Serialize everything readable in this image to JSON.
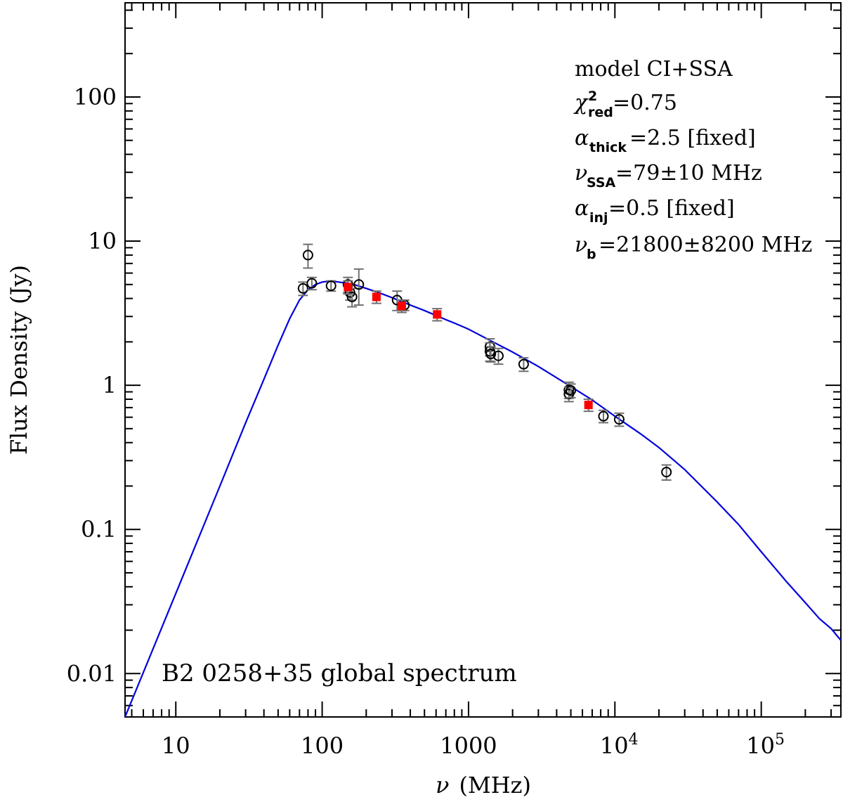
{
  "chart_data": {
    "type": "scatter",
    "title": "",
    "xlabel": "(MHz)",
    "xlabel_symbol": "ν",
    "ylabel": "Flux Density (Jy)",
    "x_scale": "log",
    "y_scale": "log",
    "xlim": [
      4.5,
      350000
    ],
    "ylim": [
      0.005,
      450
    ],
    "grid": false,
    "x_ticks": [
      {
        "value": 10,
        "label": "10"
      },
      {
        "value": 100,
        "label": "100"
      },
      {
        "value": 1000,
        "label": "1000"
      },
      {
        "value": 10000,
        "label": "10",
        "exp": "4"
      },
      {
        "value": 100000,
        "label": "10",
        "exp": "5"
      }
    ],
    "y_ticks": [
      {
        "value": 0.01,
        "label": "0.01"
      },
      {
        "value": 0.1,
        "label": "0.1"
      },
      {
        "value": 1,
        "label": "1"
      },
      {
        "value": 10,
        "label": "10"
      },
      {
        "value": 100,
        "label": "100"
      }
    ],
    "annotations": {
      "model": "model CI+SSA",
      "chi2_sym": "χ",
      "chi2_sup": "2",
      "chi2_sub": "red",
      "chi2_value": "=0.75",
      "alpha_sym": "α",
      "alpha_thick_sub": "thick",
      "alpha_thick_value": "=2.5 [fixed]",
      "nu_sym": "ν",
      "nu_ssa_sub": "SSA",
      "nu_ssa_value": "=79±10 MHz",
      "alpha_inj_sub": "inj",
      "alpha_inj_value": "=0.5 [fixed]",
      "nu_b_sub": "b",
      "nu_b_value": "=21800±8200 MHz",
      "source_label": "B2 0258+35 global spectrum"
    },
    "series": [
      {
        "marker": "open-circle",
        "color": "#000000",
        "errorbar_color": "#707070",
        "points": [
          {
            "x": 74,
            "y": 4.7,
            "err": 0.5
          },
          {
            "x": 80,
            "y": 8.0,
            "err": 1.5
          },
          {
            "x": 85,
            "y": 5.1,
            "err": 0.5
          },
          {
            "x": 115,
            "y": 4.9,
            "err": 0.4
          },
          {
            "x": 150,
            "y": 5.0,
            "err": 0.6
          },
          {
            "x": 155,
            "y": 4.4,
            "err": 0.5
          },
          {
            "x": 160,
            "y": 4.1,
            "err": 0.6
          },
          {
            "x": 178,
            "y": 5.0,
            "err": 1.4
          },
          {
            "x": 325,
            "y": 3.9,
            "err": 0.6
          },
          {
            "x": 365,
            "y": 3.6,
            "err": 0.3
          },
          {
            "x": 1400,
            "y": 1.85,
            "err": 0.25
          },
          {
            "x": 1400,
            "y": 1.72,
            "err": 0.25
          },
          {
            "x": 1420,
            "y": 1.65,
            "err": 0.2
          },
          {
            "x": 1600,
            "y": 1.6,
            "err": 0.2
          },
          {
            "x": 2380,
            "y": 1.4,
            "err": 0.15
          },
          {
            "x": 4850,
            "y": 0.93,
            "err": 0.12
          },
          {
            "x": 4850,
            "y": 0.87,
            "err": 0.1
          },
          {
            "x": 5000,
            "y": 0.92,
            "err": 0.1
          },
          {
            "x": 8350,
            "y": 0.61,
            "err": 0.06
          },
          {
            "x": 10700,
            "y": 0.58,
            "err": 0.06
          },
          {
            "x": 22500,
            "y": 0.25,
            "err": 0.03
          }
        ]
      },
      {
        "marker": "filled-square",
        "color": "#ff0000",
        "errorbar_color": "#707070",
        "points": [
          {
            "x": 150,
            "y": 4.8,
            "err": 0.5
          },
          {
            "x": 235,
            "y": 4.1,
            "err": 0.4
          },
          {
            "x": 350,
            "y": 3.55,
            "err": 0.35
          },
          {
            "x": 610,
            "y": 3.1,
            "err": 0.3
          },
          {
            "x": 6600,
            "y": 0.73,
            "err": 0.07
          }
        ]
      }
    ],
    "model_curve": {
      "color": "#0000dd",
      "x": [
        4.5,
        10,
        20,
        30,
        40,
        50,
        60,
        70,
        80,
        90,
        100,
        110,
        120,
        130,
        150,
        170,
        200,
        250,
        300,
        350,
        400,
        500,
        600,
        700,
        800,
        1000,
        1400,
        2000,
        3000,
        5000,
        7000,
        10000,
        15000,
        20000,
        30000,
        50000,
        70000,
        100000,
        150000,
        200000,
        250000,
        300000,
        350000
      ],
      "y": [
        0.005,
        0.036,
        0.2,
        0.55,
        1.1,
        1.9,
        2.9,
        3.9,
        4.6,
        5.0,
        5.2,
        5.27,
        5.25,
        5.2,
        5.1,
        4.95,
        4.7,
        4.35,
        4.05,
        3.8,
        3.6,
        3.3,
        3.05,
        2.85,
        2.7,
        2.45,
        2.05,
        1.7,
        1.35,
        0.98,
        0.79,
        0.61,
        0.46,
        0.37,
        0.26,
        0.155,
        0.108,
        0.07,
        0.043,
        0.031,
        0.024,
        0.0205,
        0.017
      ]
    }
  }
}
